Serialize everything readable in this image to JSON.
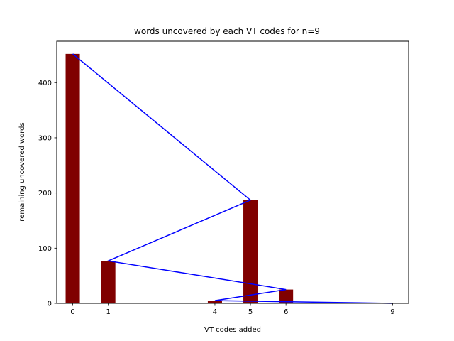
{
  "chart_data": {
    "type": "bar",
    "title": "words uncovered by each VT codes for n=9",
    "xlabel": "VT codes added",
    "ylabel": "remaining uncovered words",
    "x": [
      0,
      5,
      1,
      6,
      4,
      9
    ],
    "values": [
      452,
      187,
      77,
      25,
      5,
      0
    ],
    "xlim": [
      -0.45,
      9.45
    ],
    "ylim": [
      0,
      475
    ],
    "xticks": [
      0,
      1,
      4,
      5,
      6,
      9
    ],
    "yticks": [
      0,
      100,
      200,
      300,
      400
    ],
    "grid": false,
    "series": [
      {
        "type": "bar",
        "x": [
          0,
          5,
          1,
          6,
          4,
          9
        ],
        "values": [
          452,
          187,
          77,
          25,
          5,
          0
        ],
        "color": "#800000"
      },
      {
        "type": "line",
        "x": [
          0,
          5,
          1,
          6,
          4,
          9
        ],
        "values": [
          452,
          187,
          77,
          25,
          5,
          0
        ],
        "color": "#0000ff"
      }
    ]
  }
}
